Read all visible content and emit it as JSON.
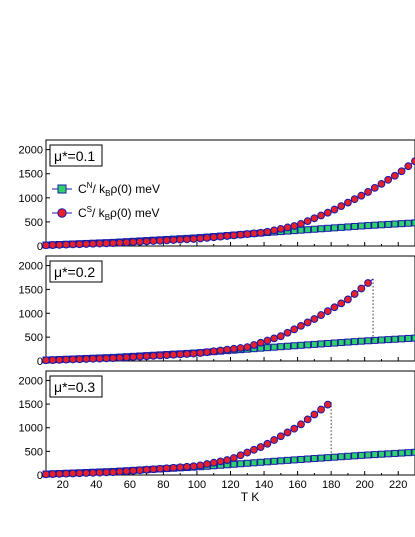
{
  "chart_data": [
    {
      "type": "scatter",
      "panel_label": "μ*=0.1",
      "ylim": [
        0,
        2200
      ],
      "xlim": [
        10,
        230
      ],
      "yticks": [
        0,
        500,
        1000,
        1500,
        2000
      ],
      "legend_placement": "upper-left",
      "series": [
        {
          "name": "Cᴺ/ kʙρ(0) meV",
          "marker": "square",
          "fill": "#2fd16a",
          "edge": "#1a1aa8",
          "x": [
            10,
            50,
            100,
            150,
            200,
            230
          ],
          "y": [
            20,
            75,
            170,
            300,
            420,
            480
          ]
        },
        {
          "name": "Cˢ/ kʙρ(0) meV",
          "marker": "circle",
          "fill": "#e8202a",
          "edge": "#1a1aa8",
          "x": [
            10,
            50,
            100,
            140,
            160,
            180,
            200,
            220,
            230
          ],
          "y": [
            15,
            60,
            150,
            280,
            430,
            720,
            1080,
            1500,
            1760
          ]
        }
      ],
      "transition_T": null
    },
    {
      "type": "scatter",
      "panel_label": "μ*=0.2",
      "ylim": [
        0,
        2200
      ],
      "xlim": [
        10,
        230
      ],
      "yticks": [
        0,
        500,
        1000,
        1500,
        2000
      ],
      "series": [
        {
          "name": "Cᴺ",
          "marker": "square",
          "fill": "#2fd16a",
          "edge": "#1a1aa8",
          "x": [
            10,
            50,
            100,
            150,
            200,
            230
          ],
          "y": [
            20,
            75,
            170,
            300,
            420,
            480
          ]
        },
        {
          "name": "Cˢ",
          "marker": "circle",
          "fill": "#e8202a",
          "edge": "#1a1aa8",
          "x": [
            10,
            50,
            100,
            130,
            150,
            170,
            190,
            205
          ],
          "y": [
            15,
            60,
            160,
            290,
            520,
            880,
            1290,
            1720
          ]
        }
      ],
      "transition_T": 205
    },
    {
      "type": "scatter",
      "panel_label": "μ*=0.3",
      "ylim": [
        0,
        2200
      ],
      "xlim": [
        10,
        230
      ],
      "yticks": [
        0,
        500,
        1000,
        1500,
        2000
      ],
      "series": [
        {
          "name": "Cᴺ",
          "marker": "square",
          "fill": "#2fd16a",
          "edge": "#1a1aa8",
          "x": [
            10,
            50,
            100,
            150,
            200,
            230
          ],
          "y": [
            20,
            75,
            170,
            300,
            420,
            480
          ]
        },
        {
          "name": "Cˢ",
          "marker": "circle",
          "fill": "#e8202a",
          "edge": "#1a1aa8",
          "x": [
            10,
            50,
            100,
            120,
            140,
            160,
            180
          ],
          "y": [
            15,
            60,
            190,
            330,
            620,
            1020,
            1540
          ]
        }
      ],
      "transition_T": 180
    }
  ],
  "xlabel": "T K",
  "xticks": [
    20,
    40,
    60,
    80,
    100,
    120,
    140,
    160,
    180,
    200,
    220
  ],
  "legend": {
    "cn_main": "C",
    "cn_sup": "N",
    "cn_rest": "/ k",
    "cn_sub": "B",
    "cn_tail": "ρ(0) meV",
    "cs_main": "C",
    "cs_sup": "S",
    "cs_rest": "/ k",
    "cs_sub": "B",
    "cs_tail": "ρ(0) meV"
  },
  "colors": {
    "square_fill": "#2fd16a",
    "circle_fill": "#e8202a",
    "edge": "#1a1aa8",
    "trans_line": "#333333"
  }
}
